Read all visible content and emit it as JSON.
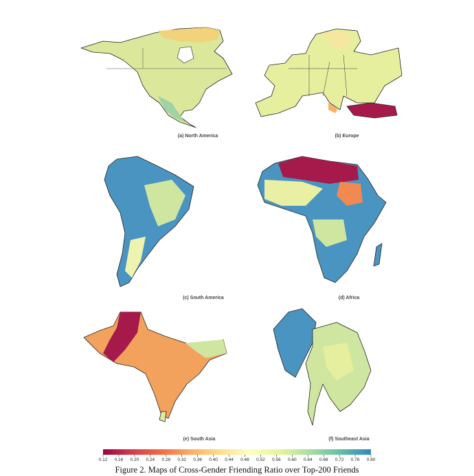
{
  "panels": [
    "(a) North America",
    "(b) Europe",
    "(c) South America",
    "(d) Africa",
    "(e) South Asia",
    "(f) Southeast Asia"
  ],
  "colorbar": {
    "range": [
      0.12,
      0.8
    ],
    "ticks": [
      0.12,
      0.16,
      {
        "value": 0.2,
        "label": "0.20"
      },
      0.24,
      0.28,
      0.32,
      0.36,
      {
        "value": 0.4,
        "label": "0.40"
      },
      0.44,
      0.48,
      0.52,
      0.56,
      {
        "value": 0.6,
        "label": "0.60"
      },
      0.64,
      0.68,
      0.72,
      0.76,
      {
        "value": 0.8,
        "label": "0.80"
      }
    ]
  },
  "caption": "Figure 2. Maps of Cross-Gender Friending Ratio over Top-200 Friends"
}
